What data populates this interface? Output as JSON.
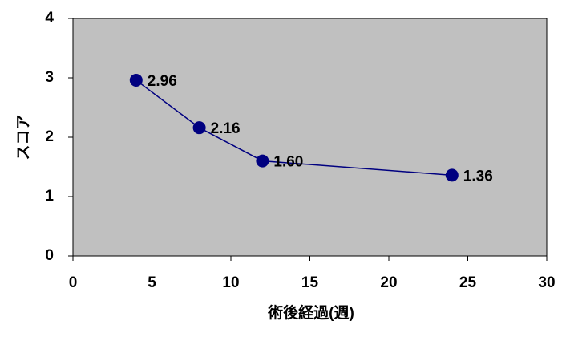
{
  "chart_data": {
    "type": "line",
    "x_label": "術後経過(週)",
    "y_label": "スコア",
    "x": [
      4,
      8,
      12,
      24
    ],
    "series": [
      {
        "color": "#000080",
        "values": [
          2.96,
          2.16,
          1.6,
          1.36
        ],
        "value_labels": [
          "2.96",
          "2.16",
          "1.60",
          "1.36"
        ]
      }
    ],
    "xlim": [
      0,
      30
    ],
    "xticks": [
      0,
      5,
      10,
      15,
      20,
      25,
      30
    ],
    "ylim": [
      0,
      4
    ],
    "yticks": [
      0,
      1,
      2,
      3,
      4
    ],
    "plot_background": "#c0c0c0",
    "grid": false
  }
}
